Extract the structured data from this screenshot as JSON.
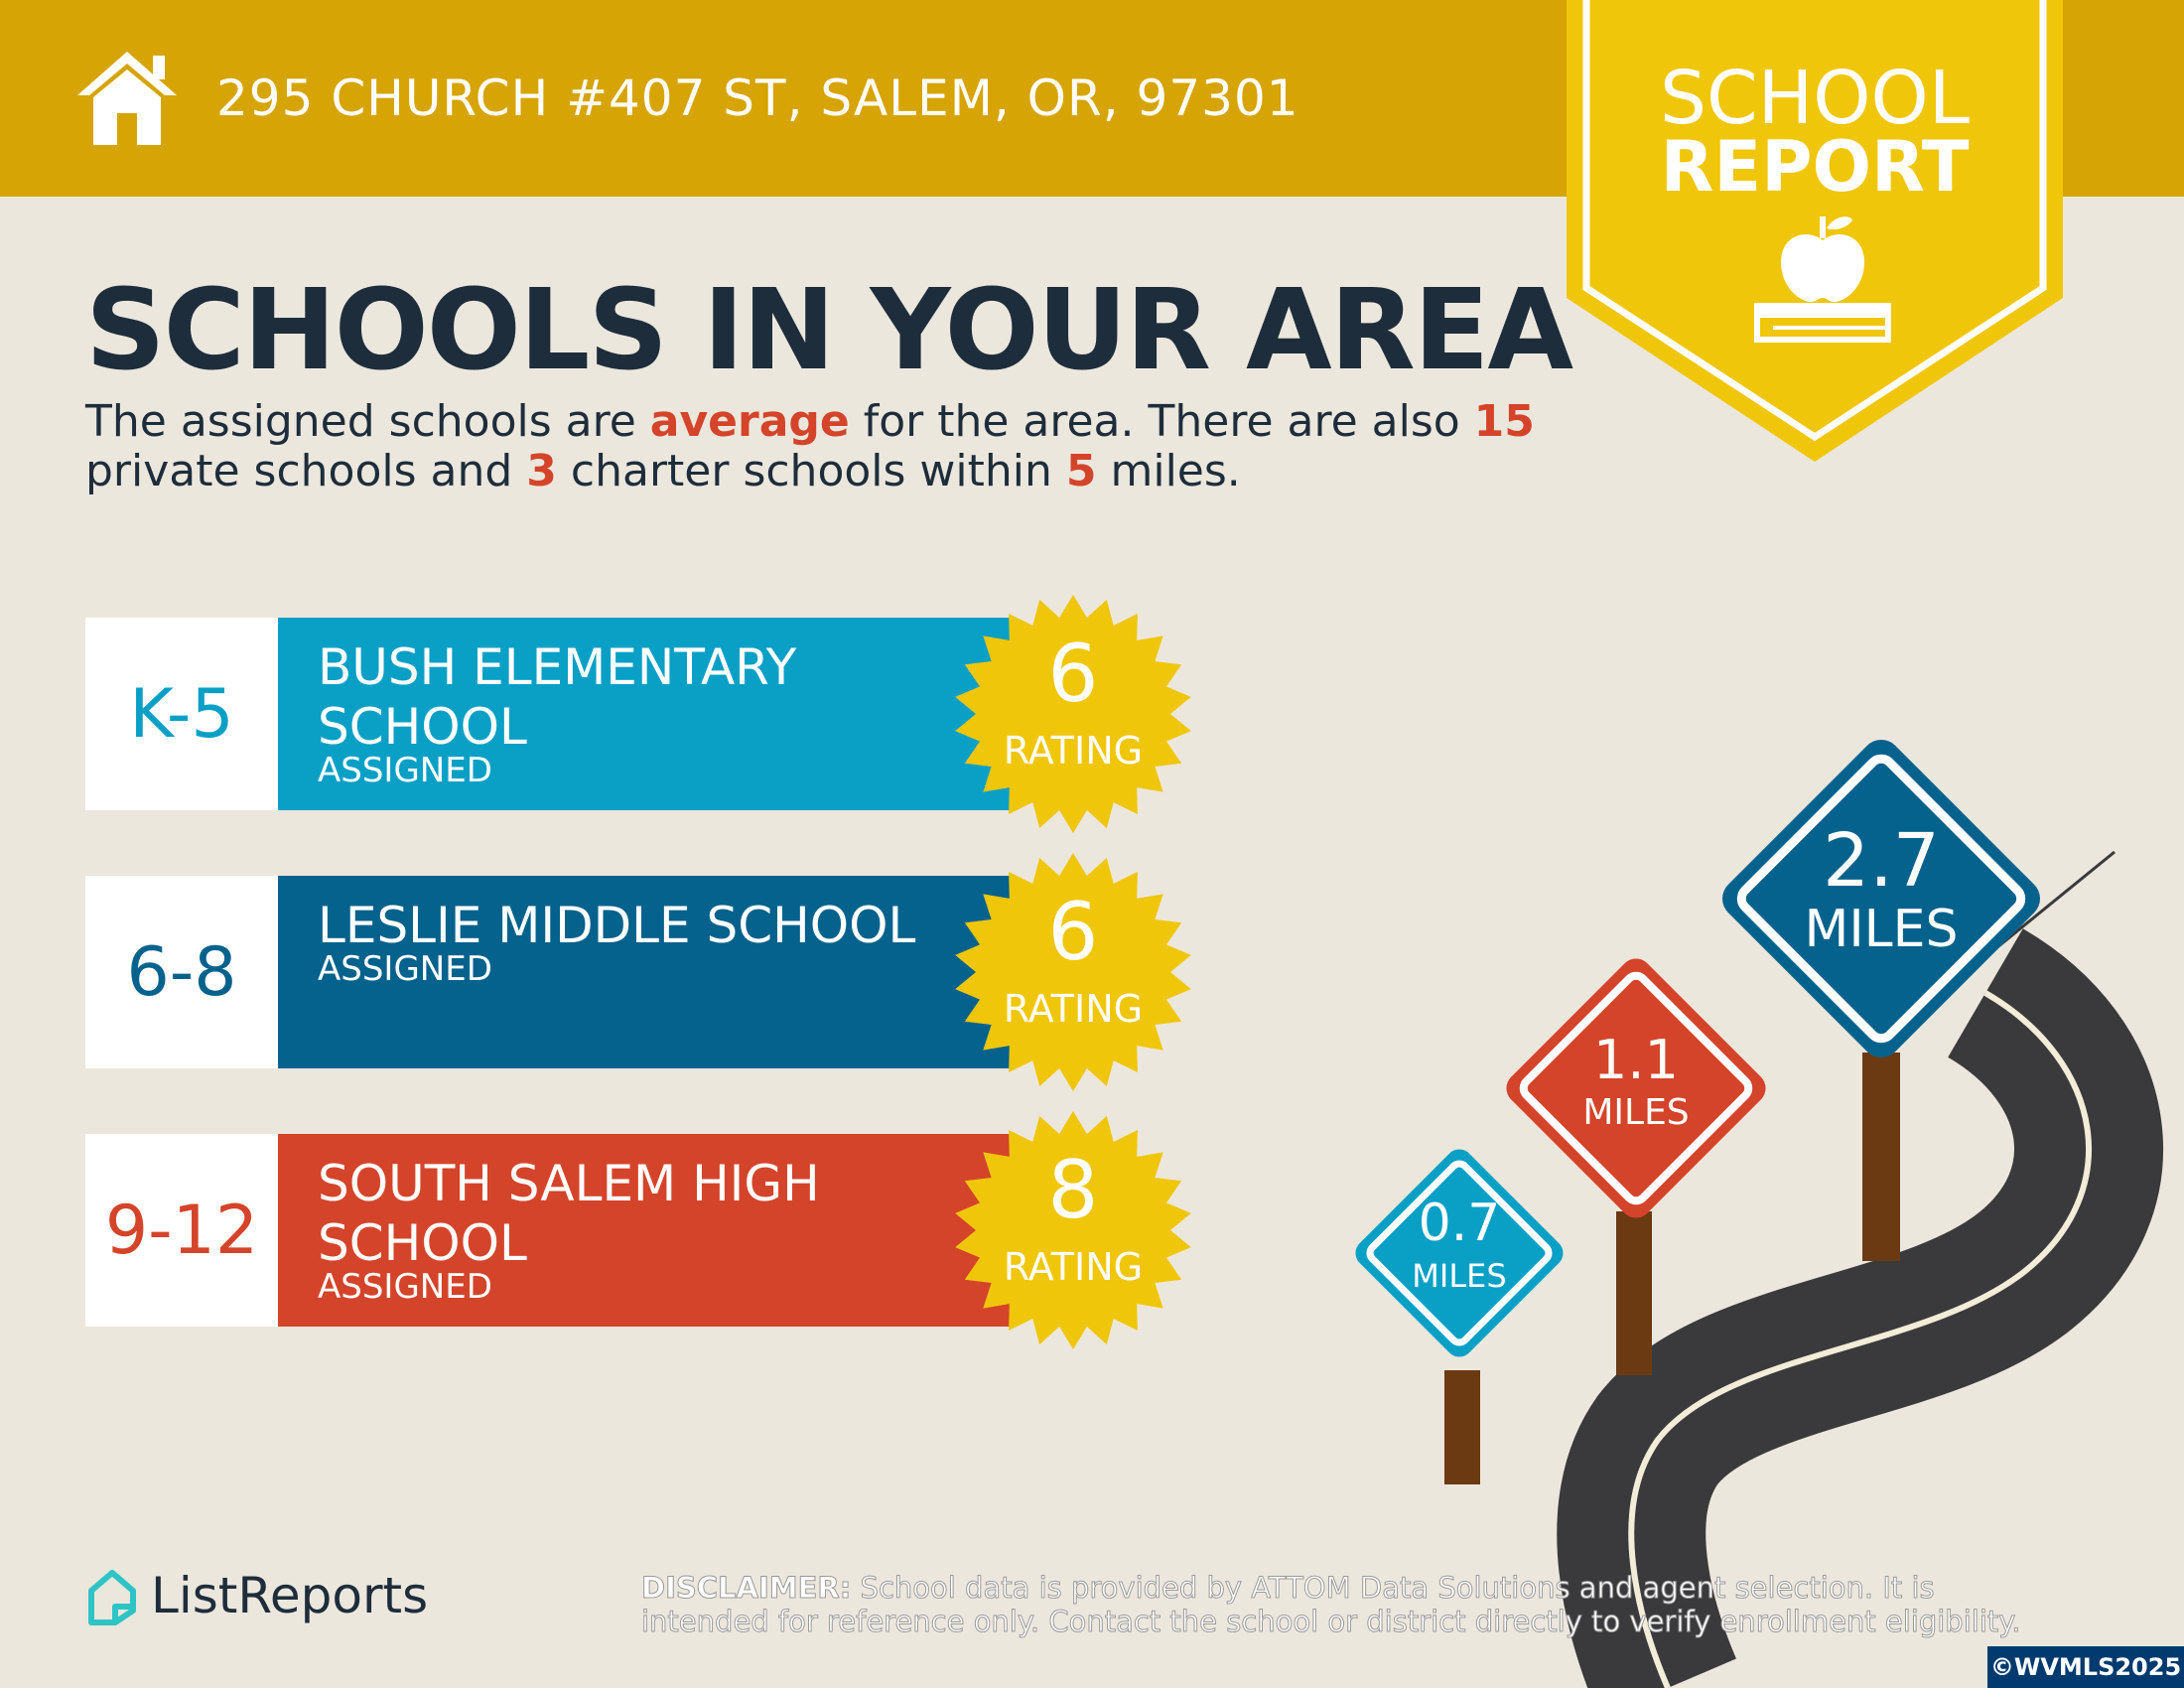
{
  "header": {
    "address": "295 CHURCH #407 ST, SALEM, OR, 97301",
    "icon": "home-icon"
  },
  "badge": {
    "title_line1": "SCHOOL",
    "title_line2": "REPORT",
    "icon": "apple-on-book-icon"
  },
  "main": {
    "title": "SCHOOLS IN YOUR AREA",
    "intro": {
      "part1": "The assigned schools are ",
      "quality": "average",
      "part2": " for the area. There are also ",
      "private_count": "15",
      "part3": " private schools and ",
      "charter_count": "3",
      "part4": " charter schools within ",
      "radius": "5",
      "part5": " miles."
    }
  },
  "schools": [
    {
      "grade": "K-5",
      "name": "BUSH ELEMENTARY SCHOOL",
      "status": "ASSIGNED",
      "rating": "6",
      "rating_label": "RATING",
      "color": "#0aa0c6",
      "grade_color": "#0aa0c6"
    },
    {
      "grade": "6-8",
      "name": "LESLIE MIDDLE SCHOOL",
      "status": "ASSIGNED",
      "rating": "6",
      "rating_label": "RATING",
      "color": "#05628c",
      "grade_color": "#05628c"
    },
    {
      "grade": "9-12",
      "name": "SOUTH SALEM HIGH SCHOOL",
      "status": "ASSIGNED",
      "rating": "8",
      "rating_label": "RATING",
      "color": "#d4442a",
      "grade_color": "#d4442a"
    }
  ],
  "distances": [
    {
      "value": "0.7",
      "unit": "MILES",
      "color": "#0aa0c6"
    },
    {
      "value": "1.1",
      "unit": "MILES",
      "color": "#d4442a"
    },
    {
      "value": "2.7",
      "unit": "MILES",
      "color": "#05628c"
    }
  ],
  "footer": {
    "logo_text": "ListReports",
    "disclaimer_label": "DISCLAIMER:",
    "disclaimer_text": " School data is provided by ATTOM Data Solutions and agent selection. It is intended for reference only. Contact the school or district directly to verify enrollment eligibility.",
    "copyright": "©WVMLS2025"
  },
  "colors": {
    "header": "#d6a404",
    "badge": "#f0c60a",
    "burst": "#f0c60a",
    "background": "#ece7dd",
    "text_dark": "#1e2d3b",
    "highlight": "#d4442a"
  }
}
